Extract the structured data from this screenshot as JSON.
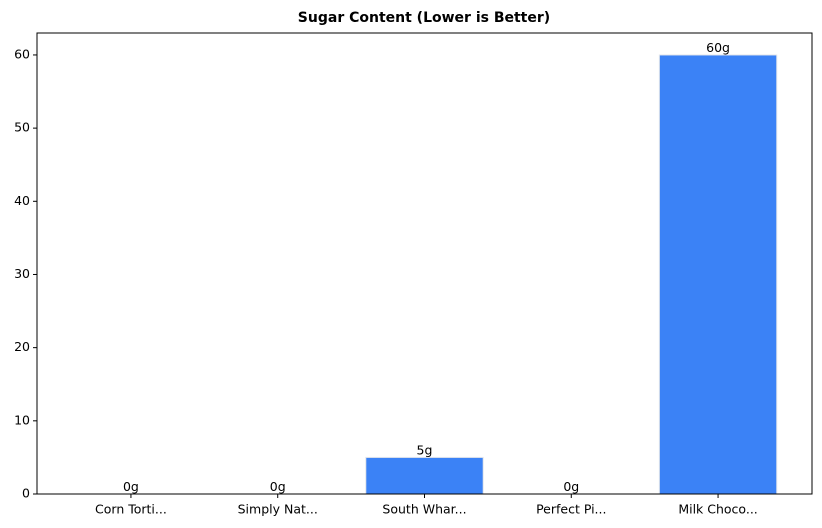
{
  "chart_data": {
    "type": "bar",
    "title": "Sugar Content (Lower is Better)",
    "categories": [
      "Corn Torti...",
      "Simply Nat...",
      "South Whar...",
      "Perfect Pi...",
      "Milk Choco..."
    ],
    "values": [
      0,
      0,
      5,
      0,
      60
    ],
    "value_labels": [
      "0g",
      "0g",
      "5g",
      "0g",
      "60g"
    ],
    "color": "#3b82f6",
    "ylim": [
      0,
      63
    ],
    "yticks": [
      0,
      10,
      20,
      30,
      40,
      50,
      60
    ],
    "grid": false
  }
}
